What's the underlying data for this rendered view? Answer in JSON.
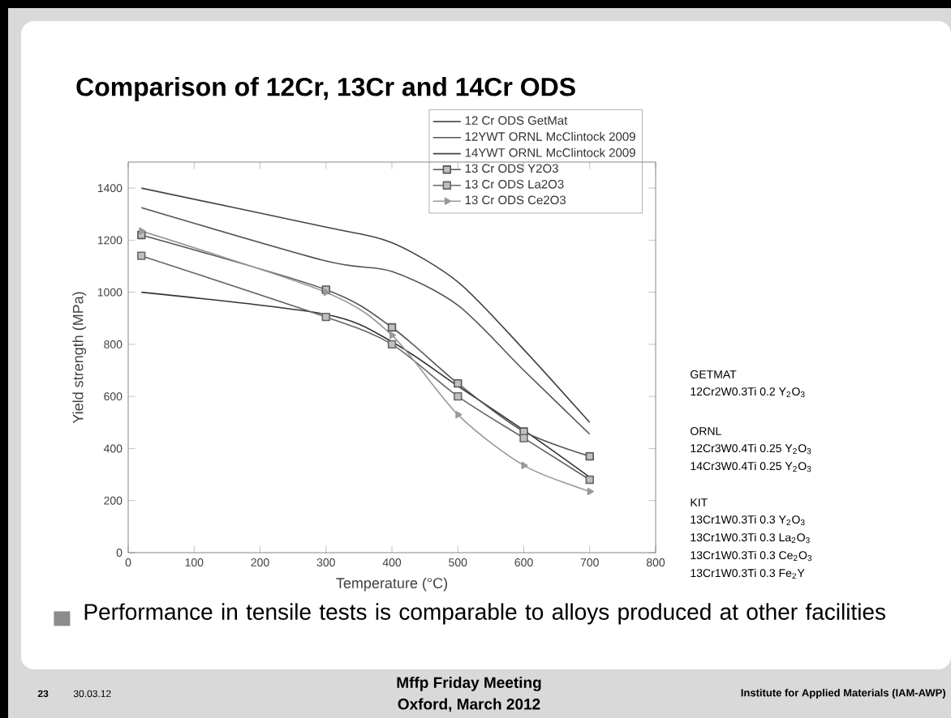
{
  "chart_data": {
    "type": "line",
    "title": "Comparison of 12Cr, 13Cr and 14Cr ODS",
    "xlabel": "Temperature (°C)",
    "ylabel": "Yield strength (MPa)",
    "x": [
      20,
      300,
      400,
      500,
      600,
      700
    ],
    "series": [
      {
        "name": "12 Cr ODS GetMat",
        "color": "#333333",
        "marker": "none",
        "values": [
          1000,
          915,
          810,
          640,
          470,
          290
        ]
      },
      {
        "name": "12YWT ORNL McClintock 2009",
        "color": "#555555",
        "marker": "none",
        "values": [
          1325,
          1120,
          1080,
          950,
          700,
          455
        ]
      },
      {
        "name": "14YWT ORNL McClintock 2009",
        "color": "#444444",
        "marker": "none",
        "values": [
          1400,
          1250,
          1190,
          1040,
          780,
          500
        ]
      },
      {
        "name": "13 Cr ODS Y2O3",
        "color": "#555555",
        "marker": "square",
        "values": [
          1220,
          1010,
          865,
          650,
          465,
          370
        ]
      },
      {
        "name": "13 Cr ODS La2O3",
        "color": "#666666",
        "marker": "square",
        "values": [
          1140,
          905,
          800,
          600,
          440,
          280
        ]
      },
      {
        "name": "13 Cr ODS Ce2O3",
        "color": "#999999",
        "marker": "triangle",
        "values": [
          1235,
          1000,
          835,
          530,
          335,
          235
        ]
      }
    ],
    "xlim": [
      0,
      800
    ],
    "xticks": [
      0,
      100,
      200,
      300,
      400,
      500,
      600,
      700,
      800
    ],
    "ylim": [
      0,
      1500
    ],
    "yticks": [
      0,
      200,
      400,
      600,
      800,
      1000,
      1200,
      1400
    ],
    "legend": "top right",
    "annotations": [
      "GETMAT",
      "12Cr2W0.3Ti 0.2 Y$_{2}$O$_{3}$",
      "ORNL",
      "12Cr3W0.4Ti 0.25 Y$_{2}$O$_{3}$",
      "14Cr3W0.4Ti 0.25 Y$_{2}$O$_{3}$",
      "KIT",
      "13Cr1W0.3Ti 0.3 Y$_{2}$O$_{3}$",
      "13Cr1W0.3Ti 0.3 La$_{2}$O$_{3}$",
      "13Cr1W0.3Ti 0.3 Ce$_{2}$O$_{3}$",
      "13Cr1W0.3Ti 0.3 Fe$_{2}$Y",
      "Performance in tensile tests is comparable to alloys produced at other facilities",
      "23",
      "30.03.12",
      "Mffp Friday Meeting",
      "Oxford, March 2012",
      "Institute for Applied Materials (IAM-AWP)"
    ]
  }
}
